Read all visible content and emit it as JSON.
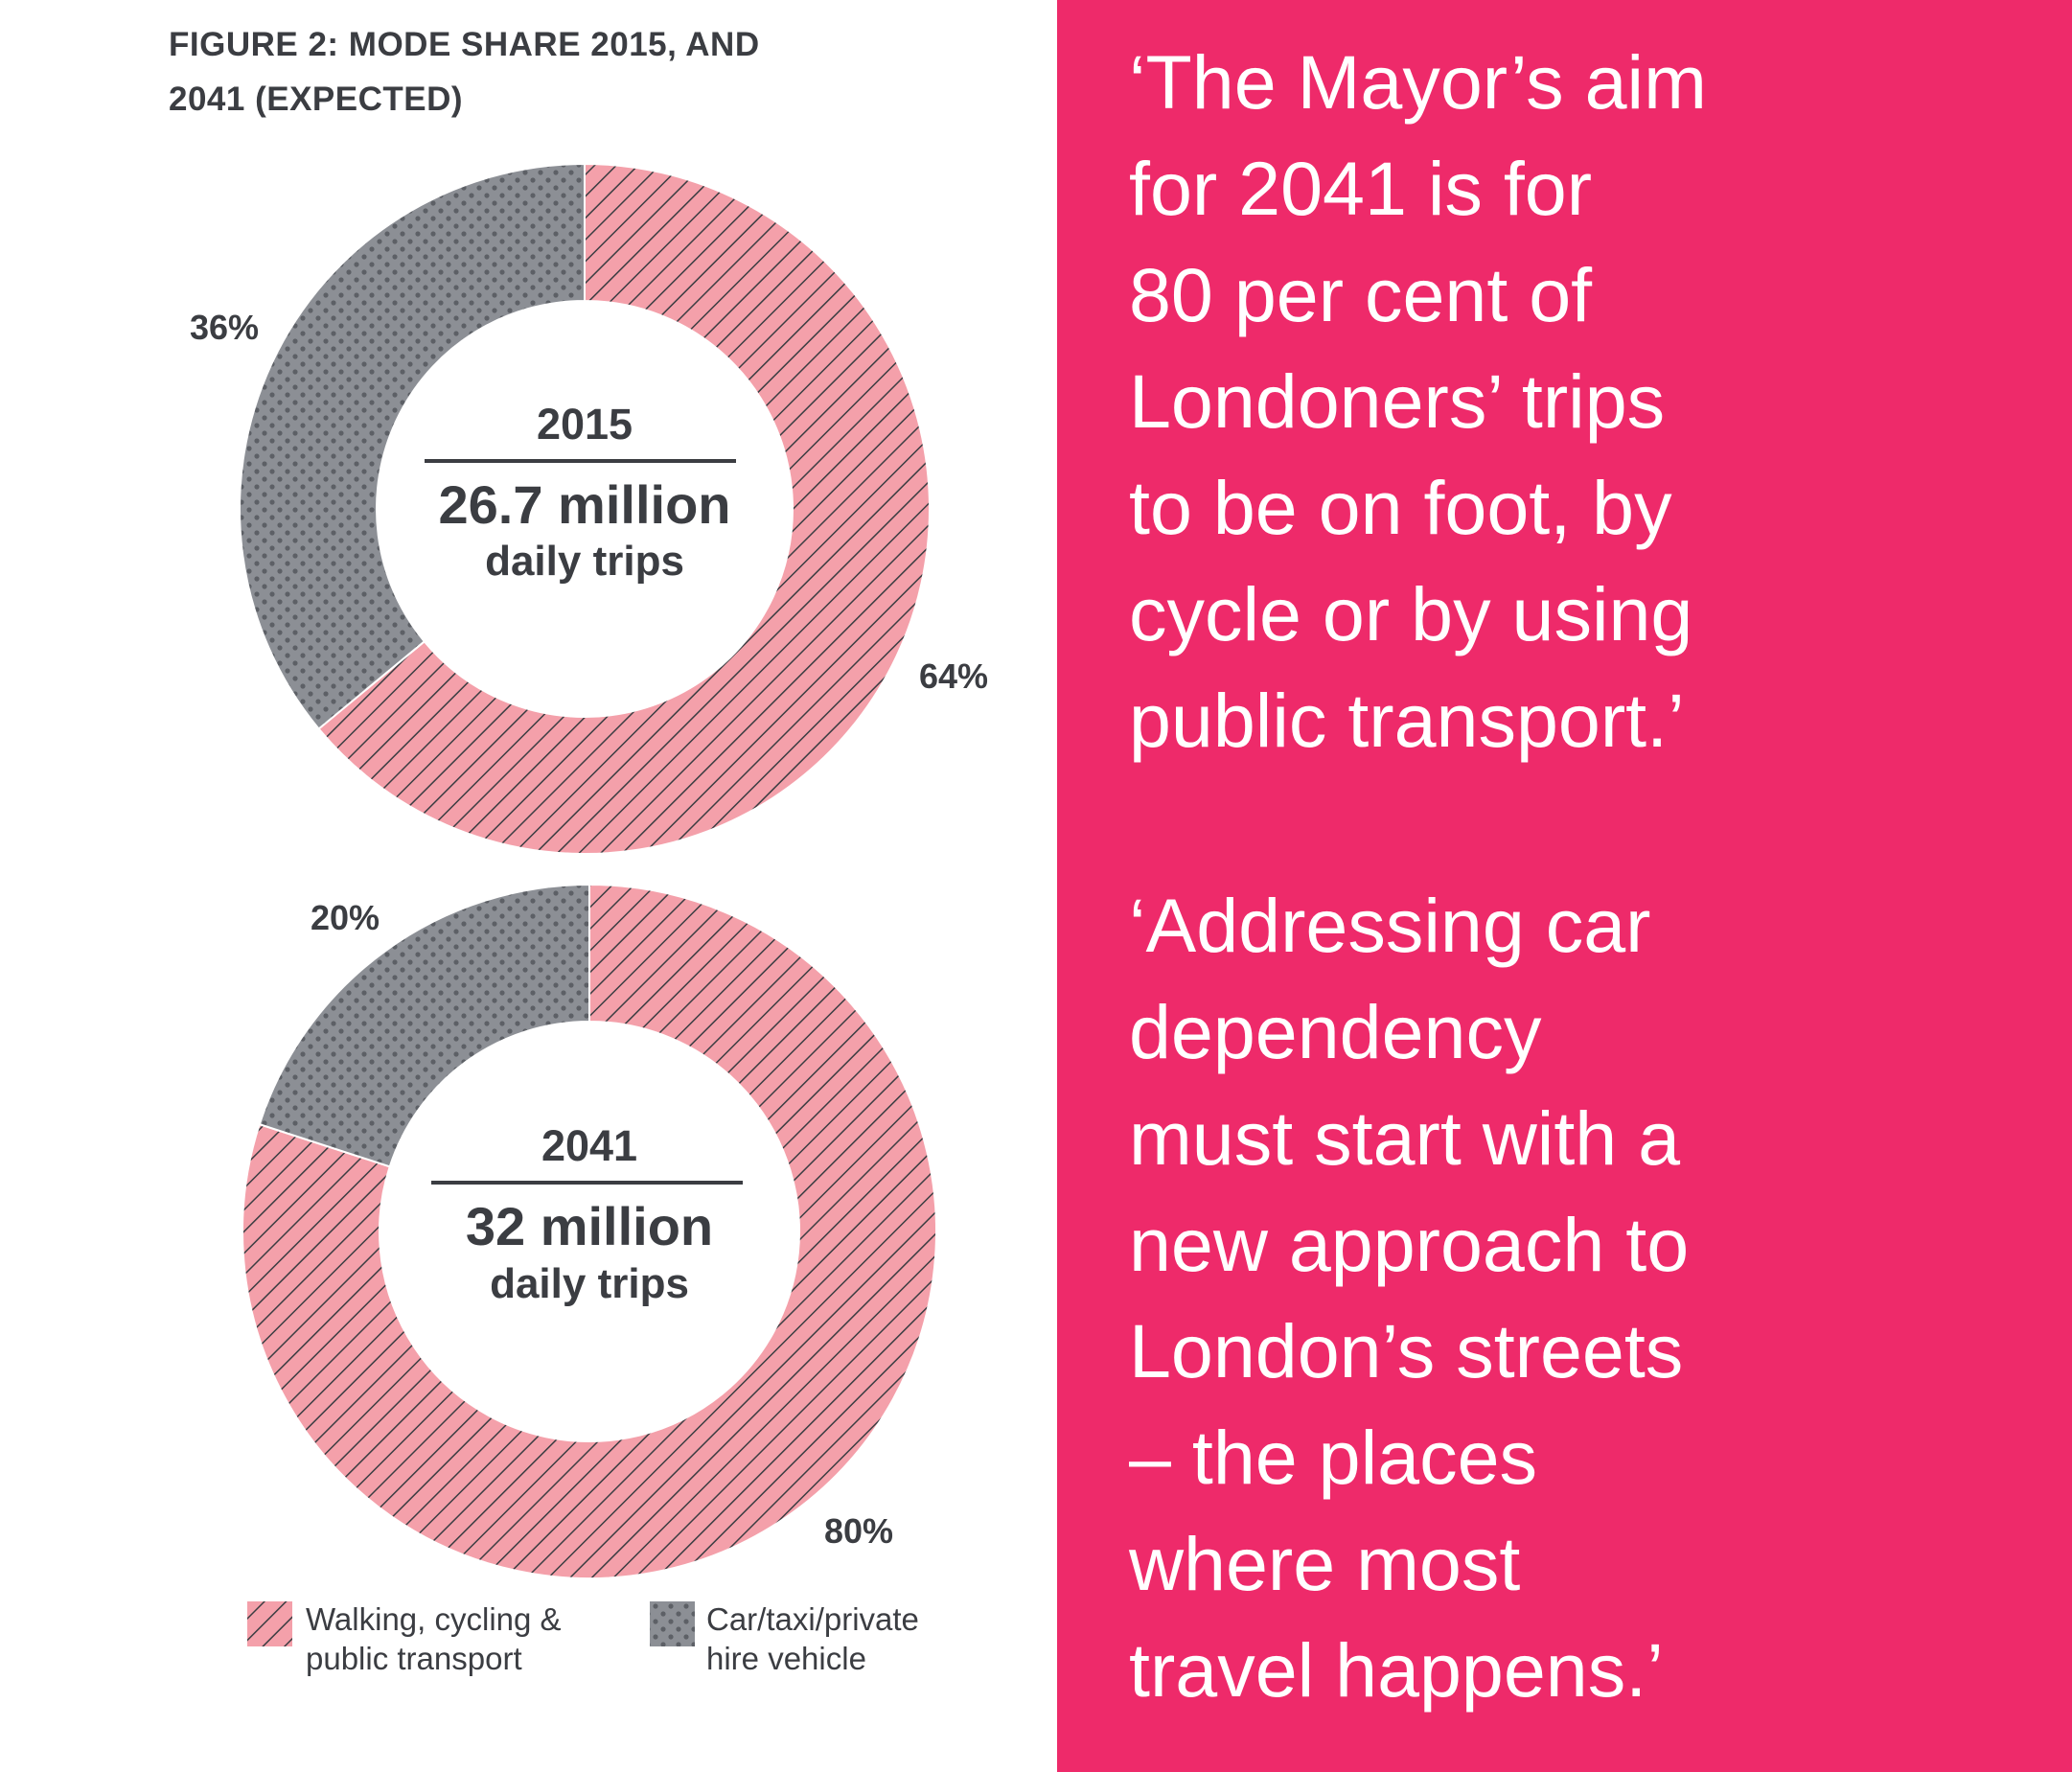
{
  "figure": {
    "title_lines": [
      "FIGURE 2: MODE SHARE 2015, AND",
      "2041 (EXPECTED)"
    ]
  },
  "colors": {
    "walking_fill": "#f4a0aa",
    "walking_hatch": "#3b3d42",
    "car_fill": "#8c8f95",
    "car_dots": "#5d6066",
    "text": "#3b3d42",
    "quote_background": "#ee2a6a",
    "quote_text": "#ffffff"
  },
  "chart_data": [
    {
      "type": "pie",
      "variant": "donut",
      "year": "2015",
      "center_value": "26.7 million",
      "center_label": "daily trips",
      "categories": [
        "Walking, cycling & public transport",
        "Car/taxi/private hire vehicle"
      ],
      "values": [
        64,
        36
      ],
      "value_labels": [
        "64%",
        "36%"
      ],
      "unit": "%"
    },
    {
      "type": "pie",
      "variant": "donut",
      "year": "2041",
      "center_value": "32 million",
      "center_label": "daily trips",
      "categories": [
        "Walking, cycling & public transport",
        "Car/taxi/private hire vehicle"
      ],
      "values": [
        80,
        20
      ],
      "value_labels": [
        "80%",
        "20%"
      ],
      "unit": "%"
    }
  ],
  "legend": {
    "walking": [
      "Walking, cycling &",
      "public transport"
    ],
    "car": [
      "Car/taxi/private",
      "hire vehicle"
    ]
  },
  "quotes": {
    "mayor": [
      "‘The Mayor’s aim",
      "for 2041 is for",
      "80 per cent of",
      "Londoners’ trips",
      "to be on foot, by",
      "cycle or by using",
      "public transport.’"
    ],
    "addressing": [
      "‘Addressing car",
      "dependency",
      "must start with a",
      "new approach to",
      "London’s streets",
      "– the places",
      "where most",
      "travel happens.’"
    ]
  }
}
